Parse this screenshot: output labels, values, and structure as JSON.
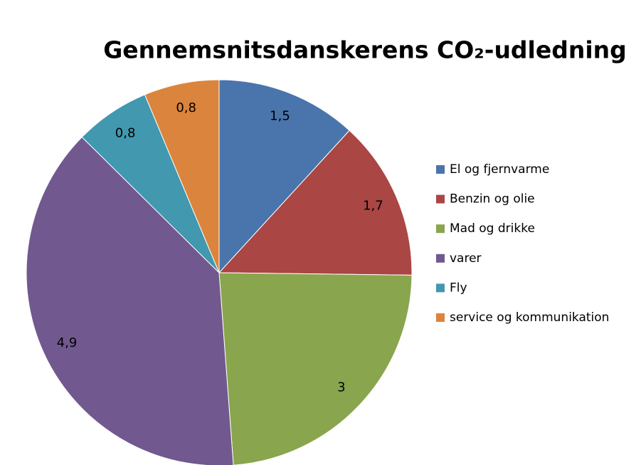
{
  "chart_data": {
    "type": "pie",
    "title": "Gennemsnitsdanskerens CO₂-udledning",
    "categories": [
      "El og fjernvarme",
      "Benzin og olie",
      "Mad og drikke",
      "varer",
      "Fly",
      "service og kommunikation"
    ],
    "values": [
      1.5,
      1.7,
      3,
      4.9,
      0.8,
      0.8
    ],
    "value_labels": [
      "1,5",
      "1,7",
      "3",
      "4,9",
      "0,8",
      "0,8"
    ],
    "colors": [
      "#4a74ac",
      "#aa4643",
      "#89a54e",
      "#71588f",
      "#4198af",
      "#db843d"
    ],
    "legend": "right"
  }
}
